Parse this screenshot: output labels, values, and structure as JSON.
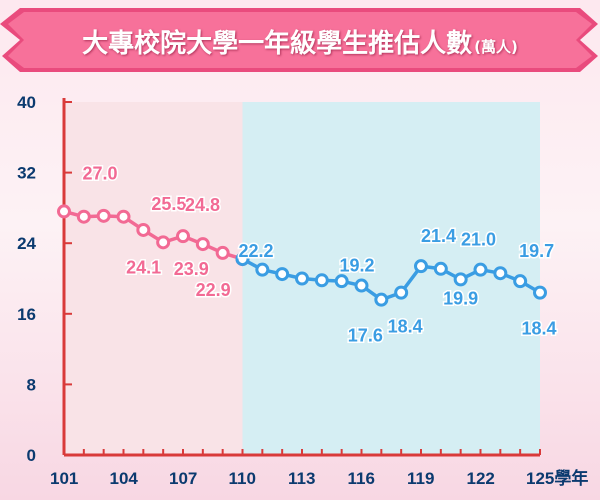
{
  "title": {
    "main": "大專校院大學一年級學生推估人數",
    "unit": "(萬人)"
  },
  "colors": {
    "banner": "#f25c8a",
    "history_series": "#f26a94",
    "projection_series": "#3a9de3",
    "history_bg": "#f9e3e7",
    "projection_bg": "#d5eef3",
    "axes": "#d93a3a",
    "tick_text": "#0b3a6f"
  },
  "chart_data": {
    "type": "line",
    "title": "大專校院大學一年級學生推估人數",
    "unit": "(萬人)",
    "xlabel": "學年",
    "ylabel": "",
    "xlim": [
      101,
      125
    ],
    "ylim": [
      0,
      40
    ],
    "yticks": [
      0,
      8,
      16,
      24,
      32,
      40
    ],
    "xticks": [
      101,
      104,
      107,
      110,
      113,
      116,
      119,
      122,
      125
    ],
    "xtick_labels": [
      "101",
      "104",
      "107",
      "110",
      "113",
      "116",
      "119",
      "122",
      "125學年"
    ],
    "grid": false,
    "shaded_regions": [
      {
        "from": 101,
        "to": 110,
        "color": "#f9e3e7"
      },
      {
        "from": 110,
        "to": 125,
        "color": "#d5eef3"
      }
    ],
    "series": [
      {
        "color": "#f26a94",
        "x": [
          101,
          102,
          103,
          104,
          105,
          106,
          107,
          108,
          109,
          110
        ],
        "values": [
          27.6,
          27.0,
          27.1,
          27.0,
          25.5,
          24.1,
          24.8,
          23.9,
          22.9,
          22.2
        ]
      },
      {
        "color": "#3a9de3",
        "x": [
          110,
          111,
          112,
          113,
          114,
          115,
          116,
          117,
          118,
          119,
          120,
          121,
          122,
          123,
          124,
          125
        ],
        "values": [
          22.2,
          21.0,
          20.5,
          20.0,
          19.8,
          19.7,
          19.2,
          17.6,
          18.4,
          21.4,
          21.1,
          19.9,
          21.0,
          20.6,
          19.7,
          18.4
        ]
      }
    ],
    "data_labels": [
      {
        "series": 0,
        "x": 104,
        "text": "27.0"
      },
      {
        "series": 0,
        "x": 105,
        "text": "25.5"
      },
      {
        "series": 0,
        "x": 106,
        "text": "24.1"
      },
      {
        "series": 0,
        "x": 107,
        "text": "24.8"
      },
      {
        "series": 0,
        "x": 108,
        "text": "23.9"
      },
      {
        "series": 0,
        "x": 109,
        "text": "22.9"
      },
      {
        "series": 1,
        "x": 110,
        "text": "22.2"
      },
      {
        "series": 1,
        "x": 116,
        "text": "19.2"
      },
      {
        "series": 1,
        "x": 117,
        "text": "17.6"
      },
      {
        "series": 1,
        "x": 118,
        "text": "18.4"
      },
      {
        "series": 1,
        "x": 119,
        "text": "21.4"
      },
      {
        "series": 1,
        "x": 121,
        "text": "19.9"
      },
      {
        "series": 1,
        "x": 122,
        "text": "21.0"
      },
      {
        "series": 1,
        "x": 124,
        "text": "19.7"
      },
      {
        "series": 1,
        "x": 125,
        "text": "18.4"
      }
    ]
  }
}
